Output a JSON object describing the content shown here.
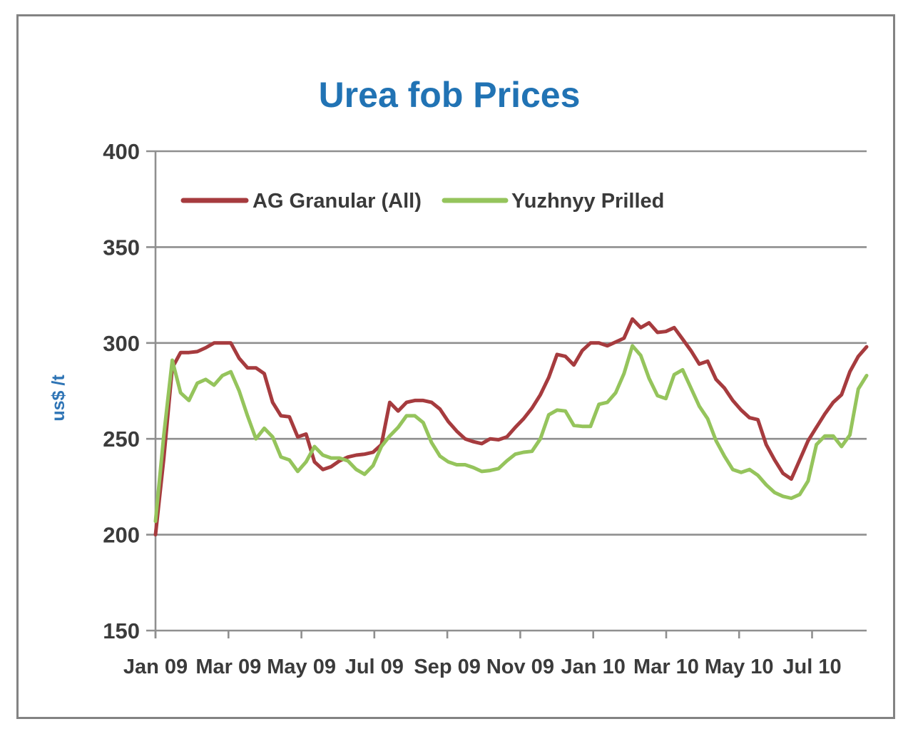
{
  "figure": {
    "border_color": "#838383",
    "background": "#ffffff"
  },
  "colors": {
    "grid": "#8F8F8F",
    "axis_text": "#3B3B3B",
    "title": "#2173B4",
    "ylabel": "#2E74B5"
  },
  "chart_data": {
    "type": "line",
    "title": "Urea fob Prices",
    "xlabel": "",
    "ylabel": "us$ /t",
    "ylim": [
      150,
      400
    ],
    "ytick_step": 50,
    "y_ticks": [
      400,
      350,
      300,
      250,
      200,
      150
    ],
    "grid": "horizontal",
    "legend_position": "top-inside",
    "x_unit": "weeks from early Jan 2009",
    "x_total_weeks": 85,
    "x_ticks": [
      {
        "label": "Jan 09",
        "pos": 0
      },
      {
        "label": "Mar 09",
        "pos": 8.72
      },
      {
        "label": "May 09",
        "pos": 17.44
      },
      {
        "label": "Jul 09",
        "pos": 26.16
      },
      {
        "label": "Sep 09",
        "pos": 34.88
      },
      {
        "label": "Nov 09",
        "pos": 43.6
      },
      {
        "label": "Jan 10",
        "pos": 52.32
      },
      {
        "label": "Mar 10",
        "pos": 61.04
      },
      {
        "label": "May 10",
        "pos": 69.76
      },
      {
        "label": "Jul 10",
        "pos": 78.48
      }
    ],
    "series": [
      {
        "name": "AG Granular (All)",
        "color": "#A63B3E",
        "values": [
          200,
          240,
          287,
          295,
          295,
          295.5,
          297.5,
          300,
          300,
          300,
          292,
          287,
          287,
          284,
          269,
          262,
          261.5,
          251,
          252.5,
          238,
          234,
          235.5,
          238.5,
          240.5,
          241.5,
          242,
          243,
          247,
          269,
          264.5,
          269,
          270,
          270,
          269,
          265.5,
          259,
          254,
          250,
          248.5,
          247.5,
          250,
          249.5,
          251,
          256,
          260.5,
          266,
          273,
          282,
          294,
          293,
          288.5,
          296,
          300,
          300,
          298.5,
          300.5,
          302.5,
          312.5,
          308,
          310.5,
          305.5,
          306,
          308,
          302,
          296,
          289,
          290.5,
          281,
          276.5,
          270,
          265,
          261,
          260,
          247,
          239,
          232,
          229,
          239,
          249,
          256,
          263,
          269,
          273,
          285,
          293,
          298
        ]
      },
      {
        "name": "Yuzhnyy Prilled",
        "color": "#95C45C",
        "values": [
          207,
          252,
          291,
          274,
          270,
          279,
          281,
          278,
          283,
          285,
          275,
          262,
          250,
          255.5,
          251,
          240.5,
          239,
          233,
          238,
          246,
          241.5,
          240,
          240,
          238.5,
          234,
          231.5,
          236,
          246,
          251.5,
          256,
          262,
          262,
          258.5,
          248,
          241,
          238,
          236.5,
          236.5,
          235,
          233,
          233.5,
          234.5,
          238.5,
          242,
          243,
          243.5,
          250,
          262.5,
          265,
          264.5,
          257,
          256.5,
          256.5,
          268,
          269,
          274,
          284,
          298.5,
          293.5,
          281.5,
          272.5,
          271,
          283.5,
          286,
          276.5,
          267,
          260.5,
          249,
          241,
          234,
          232.5,
          234,
          231,
          226,
          222,
          220,
          219,
          221,
          228,
          247,
          251.5,
          251.5,
          246,
          252,
          276,
          283
        ]
      }
    ]
  }
}
